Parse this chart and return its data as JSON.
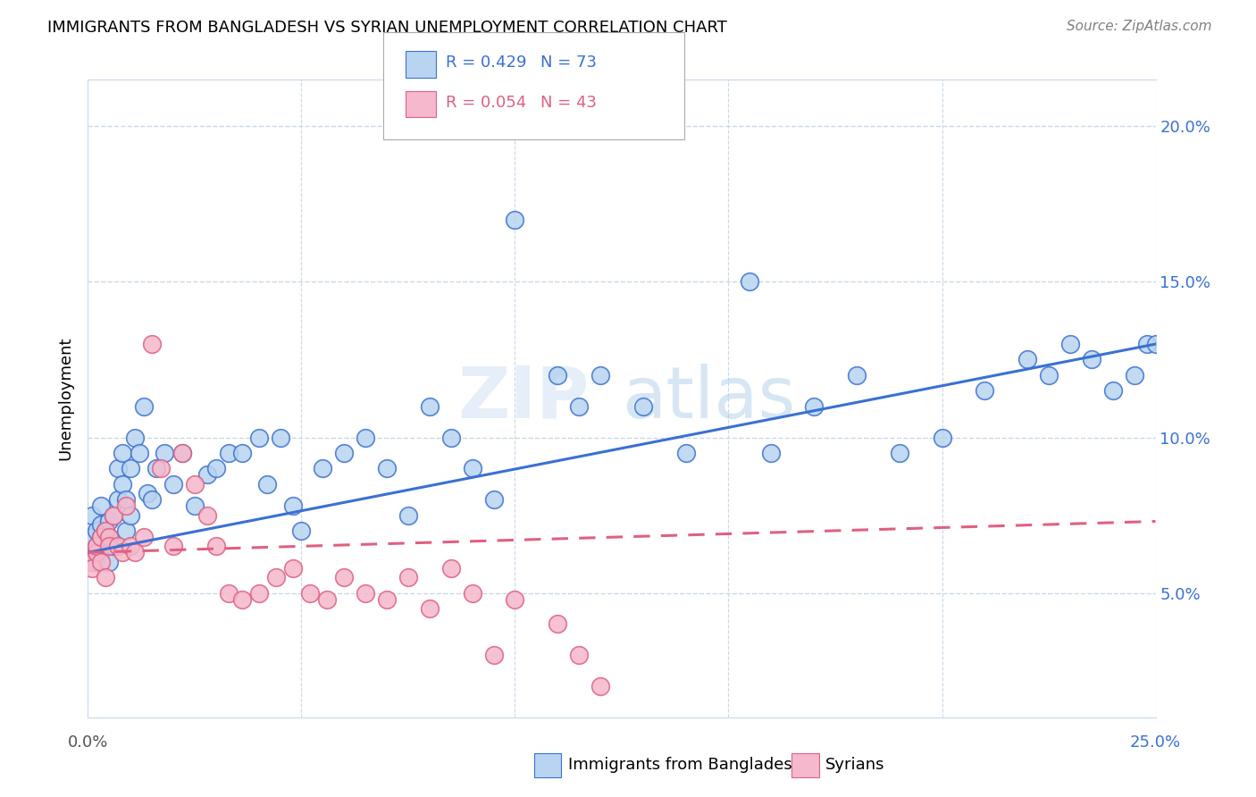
{
  "title": "IMMIGRANTS FROM BANGLADESH VS SYRIAN UNEMPLOYMENT CORRELATION CHART",
  "source": "Source: ZipAtlas.com",
  "ylabel": "Unemployment",
  "y_ticks": [
    0.05,
    0.1,
    0.15,
    0.2
  ],
  "y_tick_labels": [
    "5.0%",
    "10.0%",
    "15.0%",
    "20.0%"
  ],
  "xlim": [
    0.0,
    0.25
  ],
  "ylim": [
    0.01,
    0.215
  ],
  "legend_R_blue": "R = 0.429",
  "legend_N_blue": "N = 73",
  "legend_R_pink": "R = 0.054",
  "legend_N_pink": "N = 43",
  "color_blue": "#b8d4f0",
  "color_pink": "#f5b8cc",
  "line_blue": "#3a70d4",
  "line_pink": "#e06080",
  "watermark": "ZIPatlas",
  "bg_color": "#ffffff",
  "grid_color": "#c8d8e8",
  "bangladesh_x": [
    0.001,
    0.001,
    0.002,
    0.002,
    0.002,
    0.003,
    0.003,
    0.003,
    0.003,
    0.004,
    0.004,
    0.005,
    0.005,
    0.005,
    0.006,
    0.006,
    0.007,
    0.007,
    0.008,
    0.008,
    0.009,
    0.009,
    0.01,
    0.01,
    0.011,
    0.012,
    0.013,
    0.014,
    0.015,
    0.016,
    0.018,
    0.02,
    0.022,
    0.025,
    0.028,
    0.03,
    0.033,
    0.036,
    0.04,
    0.042,
    0.045,
    0.048,
    0.05,
    0.055,
    0.06,
    0.065,
    0.07,
    0.075,
    0.08,
    0.085,
    0.09,
    0.095,
    0.1,
    0.11,
    0.115,
    0.12,
    0.13,
    0.14,
    0.155,
    0.16,
    0.17,
    0.18,
    0.19,
    0.2,
    0.21,
    0.22,
    0.225,
    0.23,
    0.235,
    0.24,
    0.245,
    0.248,
    0.25
  ],
  "bangladesh_y": [
    0.068,
    0.075,
    0.06,
    0.065,
    0.07,
    0.063,
    0.068,
    0.072,
    0.078,
    0.065,
    0.07,
    0.06,
    0.068,
    0.073,
    0.065,
    0.075,
    0.08,
    0.09,
    0.085,
    0.095,
    0.07,
    0.08,
    0.075,
    0.09,
    0.1,
    0.095,
    0.11,
    0.082,
    0.08,
    0.09,
    0.095,
    0.085,
    0.095,
    0.078,
    0.088,
    0.09,
    0.095,
    0.095,
    0.1,
    0.085,
    0.1,
    0.078,
    0.07,
    0.09,
    0.095,
    0.1,
    0.09,
    0.075,
    0.11,
    0.1,
    0.09,
    0.08,
    0.17,
    0.12,
    0.11,
    0.12,
    0.11,
    0.095,
    0.15,
    0.095,
    0.11,
    0.12,
    0.095,
    0.1,
    0.115,
    0.125,
    0.12,
    0.13,
    0.125,
    0.115,
    0.12,
    0.13,
    0.13
  ],
  "syrian_x": [
    0.001,
    0.001,
    0.002,
    0.002,
    0.003,
    0.003,
    0.004,
    0.004,
    0.005,
    0.005,
    0.006,
    0.007,
    0.008,
    0.009,
    0.01,
    0.011,
    0.013,
    0.015,
    0.017,
    0.02,
    0.022,
    0.025,
    0.028,
    0.03,
    0.033,
    0.036,
    0.04,
    0.044,
    0.048,
    0.052,
    0.056,
    0.06,
    0.065,
    0.07,
    0.075,
    0.08,
    0.085,
    0.09,
    0.095,
    0.1,
    0.11,
    0.115,
    0.12
  ],
  "syrian_y": [
    0.06,
    0.058,
    0.063,
    0.065,
    0.068,
    0.06,
    0.07,
    0.055,
    0.068,
    0.065,
    0.075,
    0.065,
    0.063,
    0.078,
    0.065,
    0.063,
    0.068,
    0.13,
    0.09,
    0.065,
    0.095,
    0.085,
    0.075,
    0.065,
    0.05,
    0.048,
    0.05,
    0.055,
    0.058,
    0.05,
    0.048,
    0.055,
    0.05,
    0.048,
    0.055,
    0.045,
    0.058,
    0.05,
    0.03,
    0.048,
    0.04,
    0.03,
    0.02
  ],
  "bang_line_x": [
    0.0,
    0.25
  ],
  "bang_line_y": [
    0.063,
    0.13
  ],
  "syr_line_x": [
    0.0,
    0.25
  ],
  "syr_line_y": [
    0.063,
    0.073
  ]
}
